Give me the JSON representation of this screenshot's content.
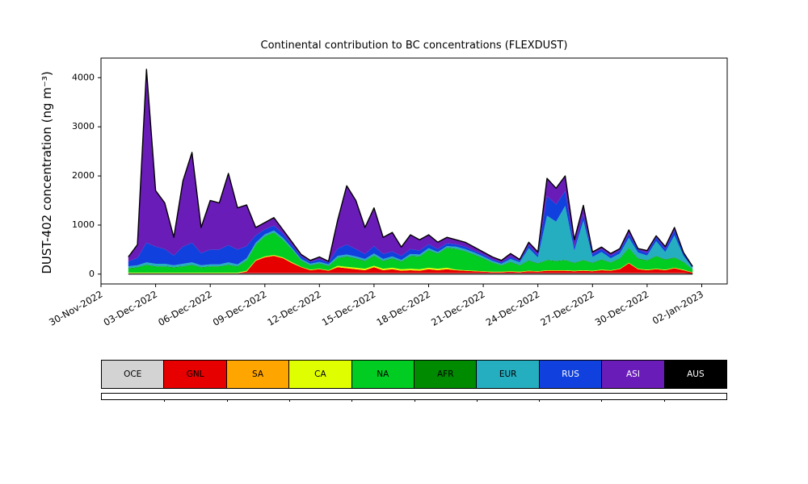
{
  "title": "Continental contribution to BC concentrations (FLEXDUST)",
  "ylabel": "DUST-402 concentration (ng m⁻³)",
  "chart_data": {
    "type": "area",
    "stacked": true,
    "title": "Continental contribution to BC concentrations (FLEXDUST)",
    "xlabel": "",
    "ylabel": "DUST-402 concentration (ng m⁻³)",
    "grid": false,
    "legend_position": "bottom",
    "x_unit": "days since 30-Nov-2022",
    "xlim": [
      0,
      34.4
    ],
    "ylim": [
      -200,
      4400
    ],
    "y_ticks": [
      0,
      1000,
      2000,
      3000,
      4000
    ],
    "x_ticks": [
      {
        "t": 0,
        "label": "30-Nov-2022"
      },
      {
        "t": 3,
        "label": "03-Dec-2022"
      },
      {
        "t": 6,
        "label": "06-Dec-2022"
      },
      {
        "t": 9,
        "label": "09-Dec-2022"
      },
      {
        "t": 12,
        "label": "12-Dec-2022"
      },
      {
        "t": 15,
        "label": "15-Dec-2022"
      },
      {
        "t": 18,
        "label": "18-Dec-2022"
      },
      {
        "t": 21,
        "label": "21-Dec-2022"
      },
      {
        "t": 24,
        "label": "24-Dec-2022"
      },
      {
        "t": 27,
        "label": "27-Dec-2022"
      },
      {
        "t": 30,
        "label": "30-Dec-2022"
      },
      {
        "t": 33,
        "label": "02-Jan-2023"
      }
    ],
    "x": [
      1.5,
      2,
      2.5,
      3,
      3.5,
      4,
      4.5,
      5,
      5.5,
      6,
      6.5,
      7,
      7.5,
      8,
      8.5,
      9,
      9.5,
      10,
      10.5,
      11,
      11.5,
      12,
      12.5,
      13,
      13.5,
      14,
      14.5,
      15,
      15.5,
      16,
      16.5,
      17,
      17.5,
      18,
      18.5,
      19,
      19.5,
      20,
      20.5,
      21,
      21.5,
      22,
      22.5,
      23,
      23.5,
      24,
      24.5,
      25,
      25.5,
      26,
      26.5,
      27,
      27.5,
      28,
      28.5,
      29,
      29.5,
      30,
      30.5,
      31,
      31.5,
      32,
      32.5
    ],
    "series": [
      {
        "name": "OCE",
        "color": "#d3d3d3",
        "text_color": "#000000",
        "values": [
          20,
          20,
          20,
          20,
          20,
          20,
          20,
          20,
          20,
          20,
          20,
          20,
          20,
          20,
          20,
          20,
          20,
          20,
          20,
          20,
          20,
          20,
          20,
          20,
          20,
          20,
          20,
          20,
          20,
          20,
          20,
          20,
          20,
          20,
          20,
          20,
          20,
          20,
          20,
          20,
          20,
          20,
          20,
          20,
          20,
          20,
          20,
          20,
          20,
          20,
          20,
          20,
          20,
          20,
          20,
          20,
          20,
          20,
          20,
          20,
          20,
          20,
          10
        ]
      },
      {
        "name": "GNL",
        "color": "#e60000",
        "text_color": "#000000",
        "values": [
          0,
          0,
          0,
          0,
          0,
          0,
          0,
          0,
          0,
          0,
          0,
          0,
          0,
          30,
          250,
          320,
          350,
          300,
          200,
          120,
          60,
          80,
          50,
          120,
          100,
          80,
          60,
          120,
          60,
          80,
          50,
          60,
          50,
          80,
          60,
          80,
          60,
          50,
          40,
          30,
          20,
          20,
          30,
          20,
          40,
          30,
          50,
          50,
          50,
          40,
          50,
          40,
          60,
          50,
          80,
          200,
          80,
          60,
          80,
          60,
          100,
          60,
          20
        ]
      },
      {
        "name": "SA",
        "color": "#ffa500",
        "text_color": "#000000",
        "values": [
          0,
          0,
          0,
          0,
          0,
          0,
          0,
          0,
          0,
          0,
          0,
          0,
          0,
          10,
          10,
          10,
          10,
          10,
          10,
          0,
          0,
          0,
          0,
          0,
          0,
          0,
          0,
          0,
          0,
          0,
          0,
          0,
          0,
          0,
          0,
          0,
          0,
          0,
          0,
          0,
          0,
          0,
          0,
          0,
          0,
          0,
          0,
          0,
          0,
          0,
          0,
          0,
          0,
          0,
          0,
          0,
          0,
          0,
          0,
          0,
          0,
          0,
          0
        ]
      },
      {
        "name": "CA",
        "color": "#dfff00",
        "text_color": "#000000",
        "values": [
          10,
          10,
          10,
          10,
          10,
          10,
          10,
          10,
          10,
          10,
          10,
          10,
          10,
          10,
          10,
          10,
          10,
          10,
          10,
          10,
          10,
          10,
          10,
          30,
          30,
          30,
          30,
          30,
          30,
          30,
          30,
          30,
          30,
          30,
          30,
          30,
          10,
          10,
          10,
          10,
          10,
          10,
          10,
          10,
          10,
          10,
          10,
          10,
          10,
          10,
          10,
          10,
          10,
          10,
          10,
          10,
          10,
          10,
          10,
          10,
          10,
          10,
          5
        ]
      },
      {
        "name": "NA",
        "color": "#00cc22",
        "text_color": "#000000",
        "values": [
          80,
          100,
          150,
          120,
          120,
          100,
          120,
          150,
          100,
          120,
          120,
          150,
          120,
          200,
          300,
          400,
          450,
          350,
          250,
          120,
          80,
          100,
          80,
          150,
          200,
          180,
          150,
          200,
          150,
          180,
          150,
          250,
          250,
          350,
          300,
          400,
          420,
          380,
          320,
          250,
          180,
          120,
          180,
          120,
          200,
          150,
          200,
          180,
          200,
          150,
          200,
          150,
          200,
          150,
          200,
          300,
          200,
          180,
          250,
          200,
          200,
          150,
          60
        ]
      },
      {
        "name": "AFR",
        "color": "#008a00",
        "text_color": "#000000",
        "values": [
          10,
          10,
          10,
          10,
          10,
          10,
          10,
          10,
          10,
          10,
          10,
          10,
          10,
          10,
          10,
          10,
          10,
          10,
          10,
          10,
          10,
          10,
          10,
          10,
          10,
          10,
          10,
          10,
          10,
          10,
          10,
          10,
          10,
          10,
          10,
          10,
          10,
          10,
          10,
          10,
          10,
          10,
          10,
          10,
          10,
          10,
          10,
          10,
          10,
          10,
          10,
          10,
          10,
          10,
          10,
          10,
          10,
          10,
          10,
          10,
          10,
          10,
          5
        ]
      },
      {
        "name": "EUR",
        "color": "#25aec0",
        "text_color": "#000000",
        "values": [
          40,
          40,
          50,
          50,
          50,
          40,
          50,
          50,
          40,
          40,
          40,
          50,
          40,
          40,
          40,
          40,
          40,
          40,
          30,
          30,
          30,
          30,
          30,
          40,
          40,
          40,
          40,
          40,
          40,
          40,
          30,
          40,
          40,
          40,
          30,
          30,
          40,
          40,
          40,
          40,
          30,
          30,
          60,
          60,
          250,
          120,
          900,
          800,
          1100,
          250,
          800,
          120,
          150,
          80,
          100,
          200,
          120,
          100,
          300,
          150,
          450,
          120,
          30
        ]
      },
      {
        "name": "RUS",
        "color": "#1040dd",
        "text_color": "#ffffff",
        "values": [
          100,
          150,
          400,
          350,
          300,
          200,
          350,
          400,
          250,
          300,
          300,
          350,
          300,
          250,
          150,
          100,
          100,
          80,
          60,
          50,
          40,
          50,
          40,
          150,
          200,
          150,
          100,
          150,
          100,
          100,
          80,
          100,
          80,
          80,
          60,
          60,
          50,
          50,
          40,
          40,
          30,
          30,
          40,
          30,
          60,
          50,
          400,
          350,
          300,
          80,
          120,
          60,
          60,
          50,
          60,
          80,
          60,
          50,
          80,
          60,
          100,
          50,
          20
        ]
      },
      {
        "name": "ASI",
        "color": "#6a1cb8",
        "text_color": "#ffffff",
        "values": [
          90,
          270,
          3530,
          1140,
          940,
          370,
          1340,
          1840,
          520,
          1000,
          950,
          1460,
          850,
          840,
          160,
          140,
          160,
          80,
          60,
          40,
          30,
          50,
          20,
          580,
          1200,
          990,
          540,
          780,
          340,
          390,
          180,
          290,
          220,
          190,
          140,
          120,
          90,
          90,
          70,
          50,
          50,
          40,
          70,
          30,
          60,
          60,
          360,
          330,
          310,
          140,
          190,
          40,
          40,
          50,
          40,
          80,
          20,
          50,
          30,
          50,
          60,
          20,
          5
        ]
      },
      {
        "name": "AUS",
        "color": "#000000",
        "text_color": "#ffffff",
        "values": [
          0,
          0,
          0,
          0,
          0,
          0,
          0,
          0,
          0,
          0,
          0,
          0,
          0,
          0,
          0,
          0,
          0,
          0,
          0,
          0,
          0,
          0,
          0,
          0,
          0,
          0,
          0,
          0,
          0,
          0,
          0,
          0,
          0,
          0,
          0,
          0,
          0,
          0,
          0,
          0,
          0,
          0,
          0,
          0,
          0,
          0,
          0,
          0,
          0,
          0,
          0,
          0,
          0,
          0,
          0,
          0,
          0,
          0,
          0,
          0,
          0,
          0,
          0
        ]
      }
    ]
  }
}
